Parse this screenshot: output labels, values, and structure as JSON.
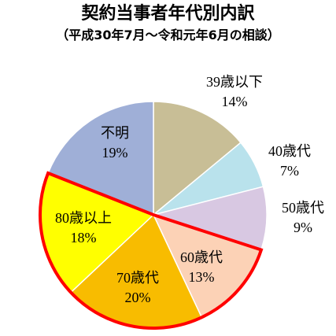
{
  "chart_data": {
    "type": "pie",
    "title": "契約当事者年代別内訳",
    "subtitle": "（平成30年7月～令和元年6月の相談）",
    "slices": [
      {
        "label": "39歳以下",
        "value_text": "14%",
        "value": 14,
        "color": "#C8BE96",
        "highlight": false
      },
      {
        "label": "40歳代",
        "value_text": "7%",
        "value": 7,
        "color": "#B9E2EC",
        "highlight": false
      },
      {
        "label": "50歳代",
        "value_text": "9%",
        "value": 9,
        "color": "#D8C8E2",
        "highlight": false
      },
      {
        "label": "60歳代",
        "value_text": "13%",
        "value": 13,
        "color": "#FCD2B6",
        "highlight": true
      },
      {
        "label": "70歳代",
        "value_text": "20%",
        "value": 20,
        "color": "#F8BC00",
        "highlight": true
      },
      {
        "label": "80歳以上",
        "value_text": "18%",
        "value": 18,
        "color": "#FFFF00",
        "highlight": true
      },
      {
        "label": "不明",
        "value_text": "19%",
        "value": 19,
        "color": "#9FAFD7",
        "highlight": false
      }
    ],
    "highlight_color": "#FF0000",
    "start_angle": "12 o'clock",
    "direction": "clockwise"
  }
}
